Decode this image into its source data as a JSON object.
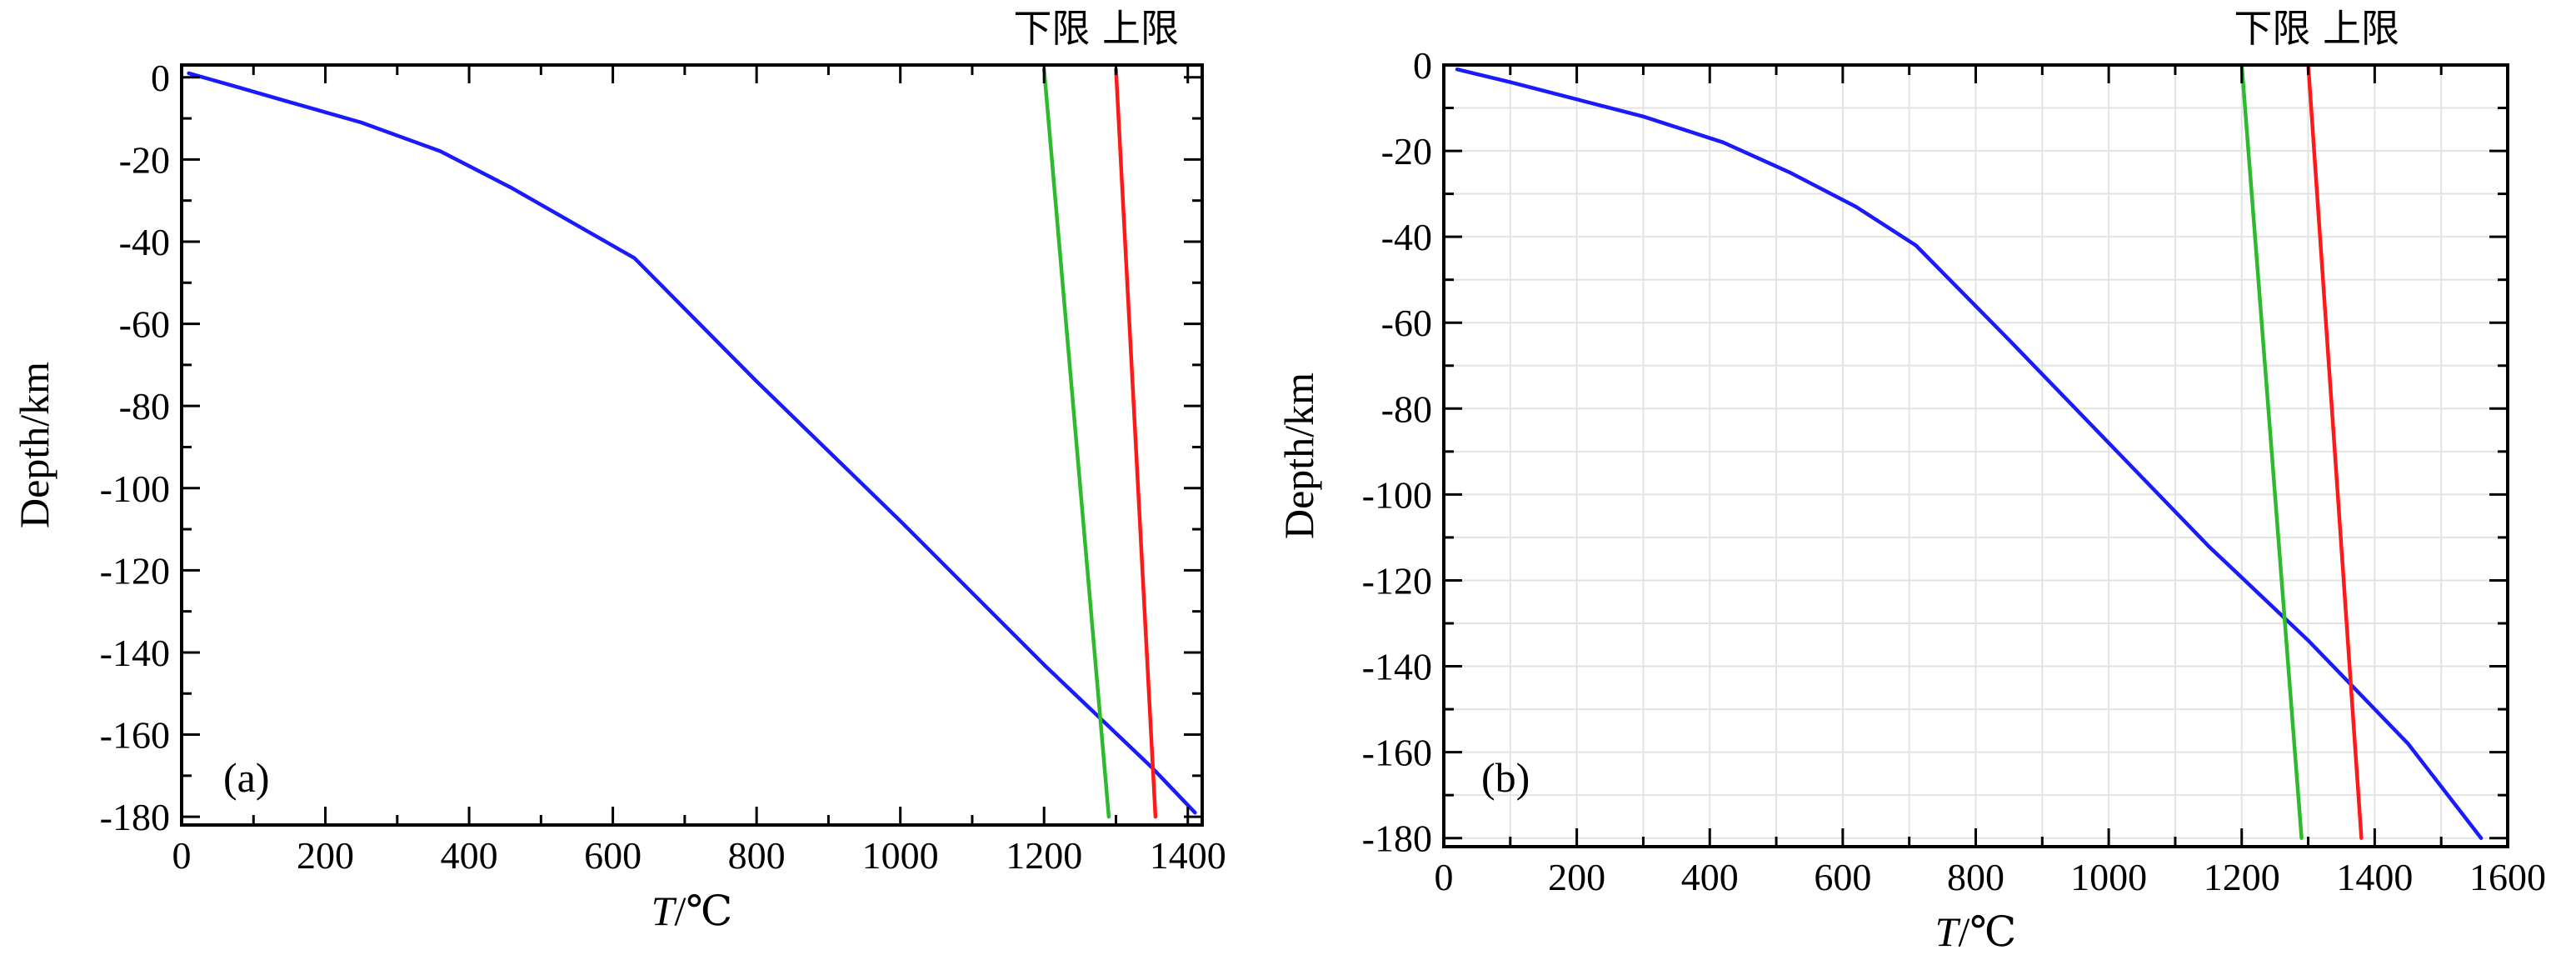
{
  "chart_data": [
    {
      "type": "line",
      "panel_label": "(a)",
      "xlabel_italic": "T",
      "xlabel_rest": "/℃",
      "ylabel": "Depth/km",
      "xlim": [
        0,
        1420
      ],
      "ylim": [
        -182,
        3
      ],
      "xticks": [
        0,
        200,
        400,
        600,
        800,
        1000,
        1200,
        1400
      ],
      "yticks": [
        0,
        -20,
        -40,
        -60,
        -80,
        -100,
        -120,
        -140,
        -160,
        -180
      ],
      "grid": false,
      "legend_text": "下限 上限",
      "legend_position": "top-right-above",
      "series": [
        {
          "color": "#1a1aff",
          "x": [
            10,
            70,
            150,
            250,
            360,
            460,
            560,
            630,
            800,
            1000,
            1200,
            1350,
            1410
          ],
          "y": [
            1,
            -2,
            -6,
            -11,
            -18,
            -27,
            -37,
            -44,
            -74,
            -108,
            -143,
            -168,
            -179
          ]
        },
        {
          "color": "#2dbb2d",
          "x": [
            1200,
            1290
          ],
          "y": [
            2,
            -180
          ]
        },
        {
          "color": "#ff1a1a",
          "x": [
            1300,
            1355
          ],
          "y": [
            2,
            -180
          ]
        }
      ]
    },
    {
      "type": "line",
      "panel_label": "(b)",
      "xlabel_italic": "T",
      "xlabel_rest": "/℃",
      "ylabel": "Depth/km",
      "xlim": [
        0,
        1600
      ],
      "ylim": [
        -182,
        0
      ],
      "xticks": [
        0,
        200,
        400,
        600,
        800,
        1000,
        1200,
        1400,
        1600
      ],
      "yticks": [
        0,
        -20,
        -40,
        -60,
        -80,
        -100,
        -120,
        -140,
        -160,
        -180
      ],
      "grid": true,
      "legend_text": "下限 上限",
      "legend_position": "top-right-above",
      "series": [
        {
          "color": "#1a1aff",
          "x": [
            20,
            100,
            200,
            300,
            420,
            520,
            620,
            710,
            850,
            1000,
            1150,
            1300,
            1450,
            1560
          ],
          "y": [
            -1,
            -4,
            -8,
            -12,
            -18,
            -25,
            -33,
            -42,
            -64,
            -88,
            -112,
            -134,
            -158,
            -180
          ]
        },
        {
          "color": "#2dbb2d",
          "x": [
            1200,
            1290
          ],
          "y": [
            0,
            -180
          ]
        },
        {
          "color": "#ff1a1a",
          "x": [
            1300,
            1380
          ],
          "y": [
            0,
            -180
          ]
        }
      ]
    }
  ]
}
